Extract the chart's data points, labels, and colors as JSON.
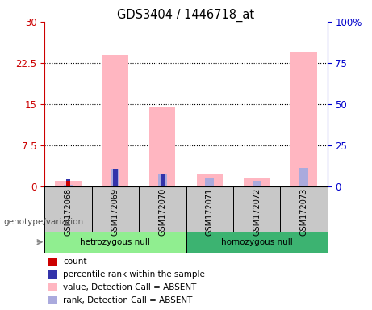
{
  "title": "GDS3404 / 1446718_at",
  "samples": [
    "GSM172068",
    "GSM172069",
    "GSM172070",
    "GSM172071",
    "GSM172072",
    "GSM172073"
  ],
  "pink_bars": [
    1.0,
    24.0,
    14.5,
    2.2,
    1.5,
    24.5
  ],
  "blue_bars": [
    1.0,
    11.0,
    7.5,
    5.5,
    3.5,
    11.5
  ],
  "red_bars": [
    1.0,
    0.0,
    0.0,
    0.0,
    0.0,
    0.0
  ],
  "dark_blue_bars": [
    1.0,
    11.0,
    7.5,
    0.0,
    0.0,
    0.0
  ],
  "left_ylim": [
    0,
    30
  ],
  "right_ylim": [
    0,
    100
  ],
  "left_yticks": [
    0,
    7.5,
    15,
    22.5,
    30
  ],
  "right_yticks": [
    0,
    25,
    50,
    75,
    100
  ],
  "left_yticklabels": [
    "0",
    "7.5",
    "15",
    "22.5",
    "30"
  ],
  "right_yticklabels": [
    "0",
    "25",
    "50",
    "75",
    "100%"
  ],
  "pink_color": "#FFB6C1",
  "light_blue_color": "#AAAADD",
  "red_color": "#CC0000",
  "dark_blue_color": "#3333AA",
  "bg_color": "#FFFFFF",
  "gray_color": "#C8C8C8",
  "green1_color": "#90EE90",
  "green2_color": "#3CB371",
  "genotype_label": "genotype/variation",
  "group1_name": "hetrozygous null",
  "group2_name": "homozygous null",
  "legend_items": [
    {
      "color": "#CC0000",
      "label": "count"
    },
    {
      "color": "#3333AA",
      "label": "percentile rank within the sample"
    },
    {
      "color": "#FFB6C1",
      "label": "value, Detection Call = ABSENT"
    },
    {
      "color": "#AAAADD",
      "label": "rank, Detection Call = ABSENT"
    }
  ]
}
